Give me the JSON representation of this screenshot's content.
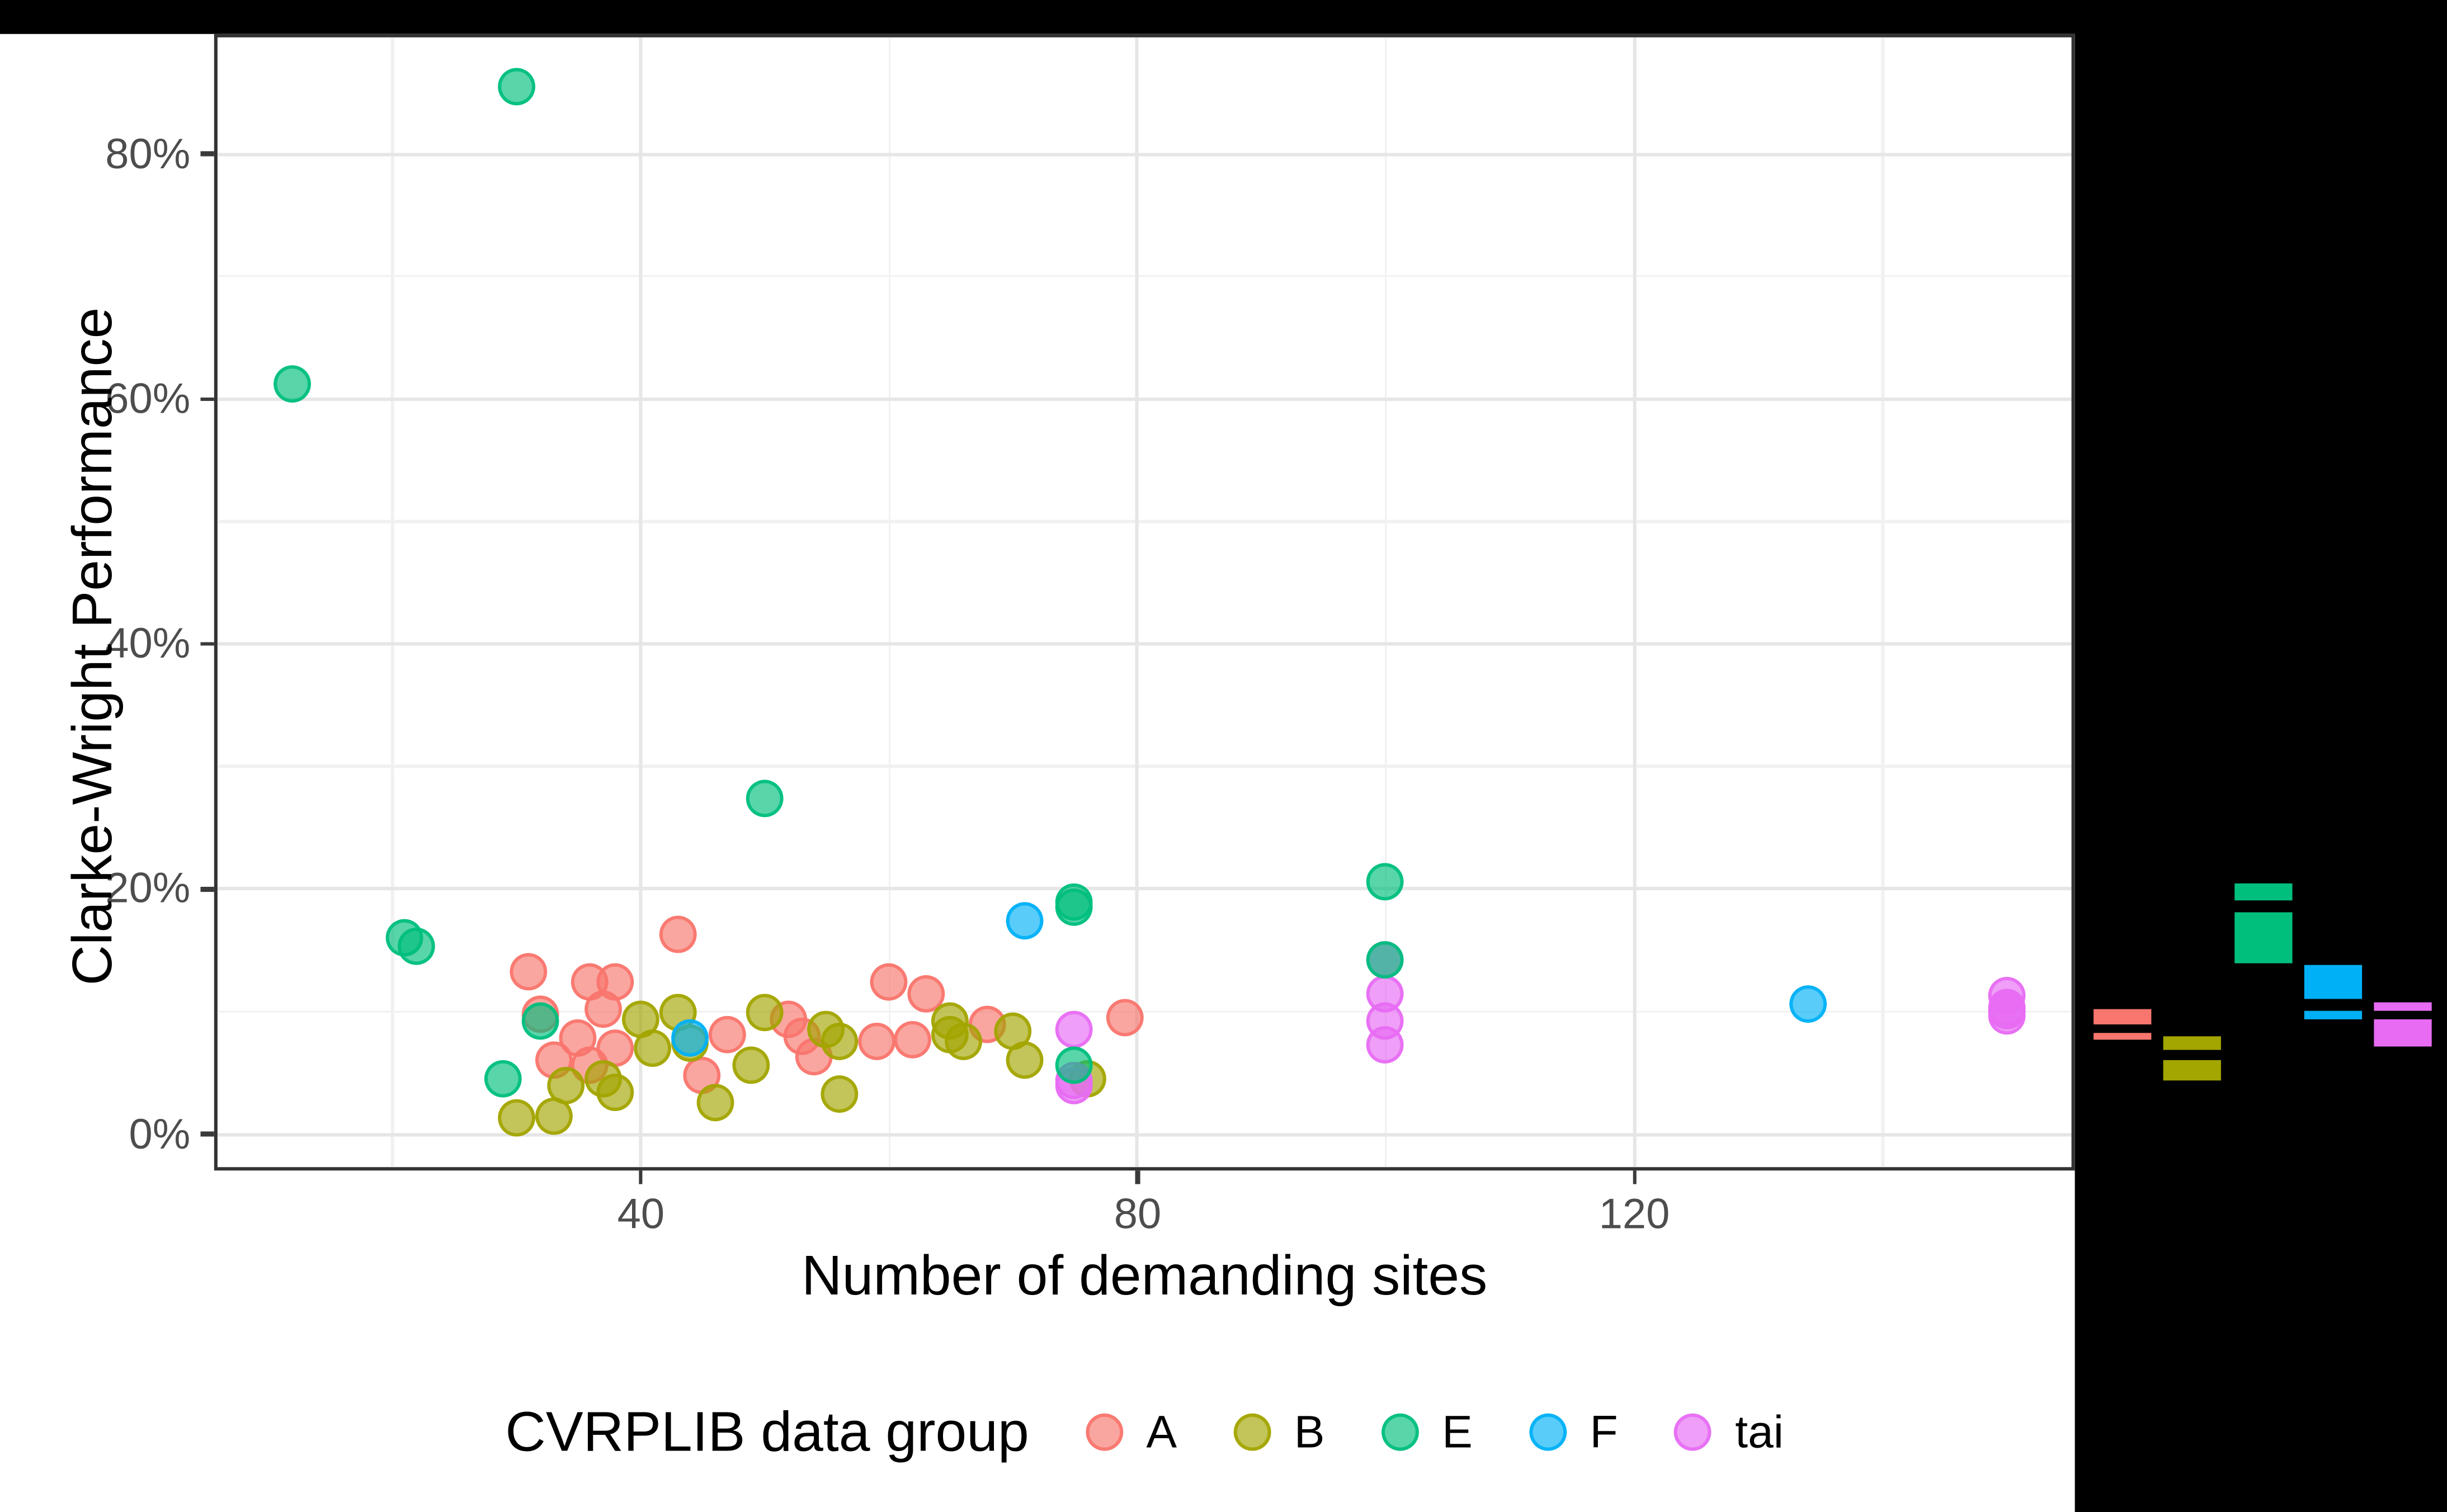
{
  "figure": {
    "outer_background": "#000000",
    "panel_background": "#ffffff",
    "panel_border_color": "#333333",
    "grid_major_color": "#e6e6e6",
    "grid_minor_color": "#f1f1f1",
    "tick_color": "#3a3a3a",
    "tick_label_color": "#4d4d4d",
    "title_color": "#000000",
    "point_fill_opacity": 0.65,
    "point_stroke_opacity": 0.9
  },
  "chart_data": {
    "type": "scatter",
    "title": "",
    "xlabel": "Number of demanding sites",
    "ylabel": "Clarke-Wright Performance",
    "x_axis": {
      "ticks": [
        40,
        80,
        120
      ],
      "tick_labels": [
        "40",
        "80",
        "120"
      ],
      "minor_breaks": [
        20,
        60,
        100,
        140
      ],
      "range": [
        5.9,
        155.2
      ]
    },
    "y_axis": {
      "ticks": [
        0,
        20,
        40,
        60,
        80
      ],
      "tick_labels": [
        "0%",
        "20%",
        "40%",
        "60%",
        "80%"
      ],
      "minor_breaks": [
        10,
        30,
        50,
        70
      ],
      "range": [
        -2.7,
        89.5
      ],
      "unit": "percent"
    },
    "legend": {
      "title": "CVRPLIB data group",
      "position": "bottom",
      "entries": [
        "A",
        "B",
        "E",
        "F",
        "tai"
      ]
    },
    "grid": true,
    "draw_order": [
      "A",
      "B",
      "tai",
      "E",
      "F"
    ],
    "series": [
      {
        "name": "A",
        "color": "#F8766D",
        "points": [
          [
            31,
            13.2
          ],
          [
            32,
            9.7
          ],
          [
            33,
            5.9
          ],
          [
            35,
            7.8
          ],
          [
            36,
            12.3
          ],
          [
            36,
            5.5
          ],
          [
            37,
            10.1
          ],
          [
            38,
            12.4
          ],
          [
            38,
            6.9
          ],
          [
            43,
            16.2
          ],
          [
            45,
            4.7
          ],
          [
            47,
            8.0
          ],
          [
            52,
            9.3
          ],
          [
            53,
            7.9
          ],
          [
            54,
            6.3
          ],
          [
            59,
            7.5
          ],
          [
            60,
            12.3
          ],
          [
            62,
            7.6
          ],
          [
            63,
            11.4
          ],
          [
            68,
            8.9
          ],
          [
            79,
            9.5
          ]
        ]
      },
      {
        "name": "B",
        "color": "#A3A500",
        "points": [
          [
            30,
            1.3
          ],
          [
            33,
            1.4
          ],
          [
            34,
            3.9
          ],
          [
            37,
            4.4
          ],
          [
            38,
            3.4
          ],
          [
            40,
            9.3
          ],
          [
            41,
            6.9
          ],
          [
            43,
            9.9
          ],
          [
            44,
            7.4
          ],
          [
            46,
            2.5
          ],
          [
            49,
            5.5
          ],
          [
            50,
            9.8
          ],
          [
            55,
            8.4
          ],
          [
            56,
            7.5
          ],
          [
            56,
            3.2
          ],
          [
            65,
            9.2
          ],
          [
            65,
            8.1
          ],
          [
            66,
            7.5
          ],
          [
            70,
            8.3
          ],
          [
            71,
            6.0
          ],
          [
            76,
            4.4
          ]
        ]
      },
      {
        "name": "E",
        "color": "#00BF7D",
        "points": [
          [
            12,
            61.2
          ],
          [
            21,
            15.9
          ],
          [
            22,
            15.2
          ],
          [
            29,
            4.4
          ],
          [
            30,
            85.4
          ],
          [
            32,
            9.2
          ],
          [
            50,
            27.3
          ],
          [
            75,
            18.4
          ],
          [
            75,
            18.9
          ],
          [
            75,
            5.6
          ],
          [
            100,
            20.5
          ],
          [
            100,
            14.1
          ]
        ]
      },
      {
        "name": "F",
        "color": "#00B0F6",
        "points": [
          [
            44,
            7.7
          ],
          [
            71,
            17.4
          ],
          [
            134,
            10.5
          ]
        ]
      },
      {
        "name": "tai",
        "color": "#E76BF3",
        "points": [
          [
            75,
            8.4
          ],
          [
            75,
            4.3
          ],
          [
            75,
            3.9
          ],
          [
            100,
            14.2
          ],
          [
            100,
            11.4
          ],
          [
            100,
            9.2
          ],
          [
            100,
            7.2
          ],
          [
            150,
            11.2
          ],
          [
            150,
            10.3
          ],
          [
            150,
            10.0
          ],
          [
            150,
            9.6
          ]
        ]
      }
    ],
    "marginal_boxplots": {
      "axis": "y",
      "background": "#000000",
      "groups": [
        {
          "name": "A",
          "color": "#F8766D",
          "upper_segment": [
            10.2,
            9.0
          ],
          "lower_segment": [
            8.3,
            7.7
          ]
        },
        {
          "name": "B",
          "color": "#A3A500",
          "upper_segment": [
            8.0,
            6.9
          ],
          "lower_segment": [
            6.1,
            4.4
          ]
        },
        {
          "name": "E",
          "color": "#00BF7D",
          "upper_segment": [
            20.5,
            19.0
          ],
          "lower_segment": [
            18.1,
            14.0
          ]
        },
        {
          "name": "F",
          "color": "#00B0F6",
          "upper_segment": [
            13.8,
            11.0
          ],
          "lower_segment": [
            10.1,
            9.3
          ]
        },
        {
          "name": "tai",
          "color": "#E76BF3",
          "upper_segment": [
            10.7,
            10.1
          ],
          "lower_segment": [
            9.3,
            7.1
          ]
        }
      ]
    }
  }
}
